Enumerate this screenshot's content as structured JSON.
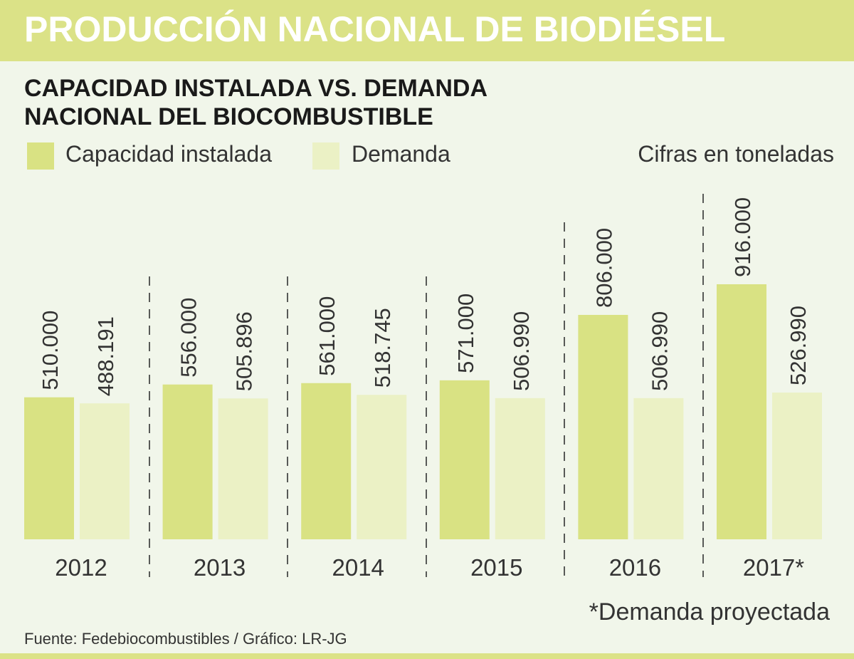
{
  "header": {
    "title": "PRODUCCIÓN NACIONAL DE BIODIÉSEL",
    "subtitle_line1": "CAPACIDAD INSTALADA VS. DEMANDA",
    "subtitle_line2": "NACIONAL DEL BIOCOMBUSTIBLE"
  },
  "legend": {
    "capacity": "Capacidad instalada",
    "demand": "Demanda",
    "units": "Cifras en toneladas"
  },
  "footnote": "*Demanda proyectada",
  "source": "Fuente: Fedebiocombustibles / Gráfico: LR-JG",
  "colors": {
    "capacity": "#d9e283",
    "demand": "#ebf1c5",
    "header_bar": "#dbe287",
    "background": "#f1f6ea"
  },
  "chart_data": {
    "type": "bar",
    "title": "CAPACIDAD INSTALADA VS. DEMANDA NACIONAL DEL BIOCOMBUSTIBLE",
    "categories": [
      "2012",
      "2013",
      "2014",
      "2015",
      "2016",
      "2017*"
    ],
    "series": [
      {
        "name": "Capacidad instalada",
        "values": [
          510000,
          556000,
          561000,
          571000,
          806000,
          916000
        ],
        "labels": [
          "510.000",
          "556.000",
          "561.000",
          "571.000",
          "806.000",
          "916.000"
        ]
      },
      {
        "name": "Demanda",
        "values": [
          488191,
          505896,
          518745,
          506990,
          506990,
          526990
        ],
        "labels": [
          "488.191",
          "505.896",
          "518.745",
          "506.990",
          "506.990",
          "526.990"
        ]
      }
    ],
    "ylim": [
      0,
      916000
    ],
    "xlabel": "",
    "ylabel": "Cifras en toneladas",
    "grid": false,
    "legend_position": "top-left"
  }
}
